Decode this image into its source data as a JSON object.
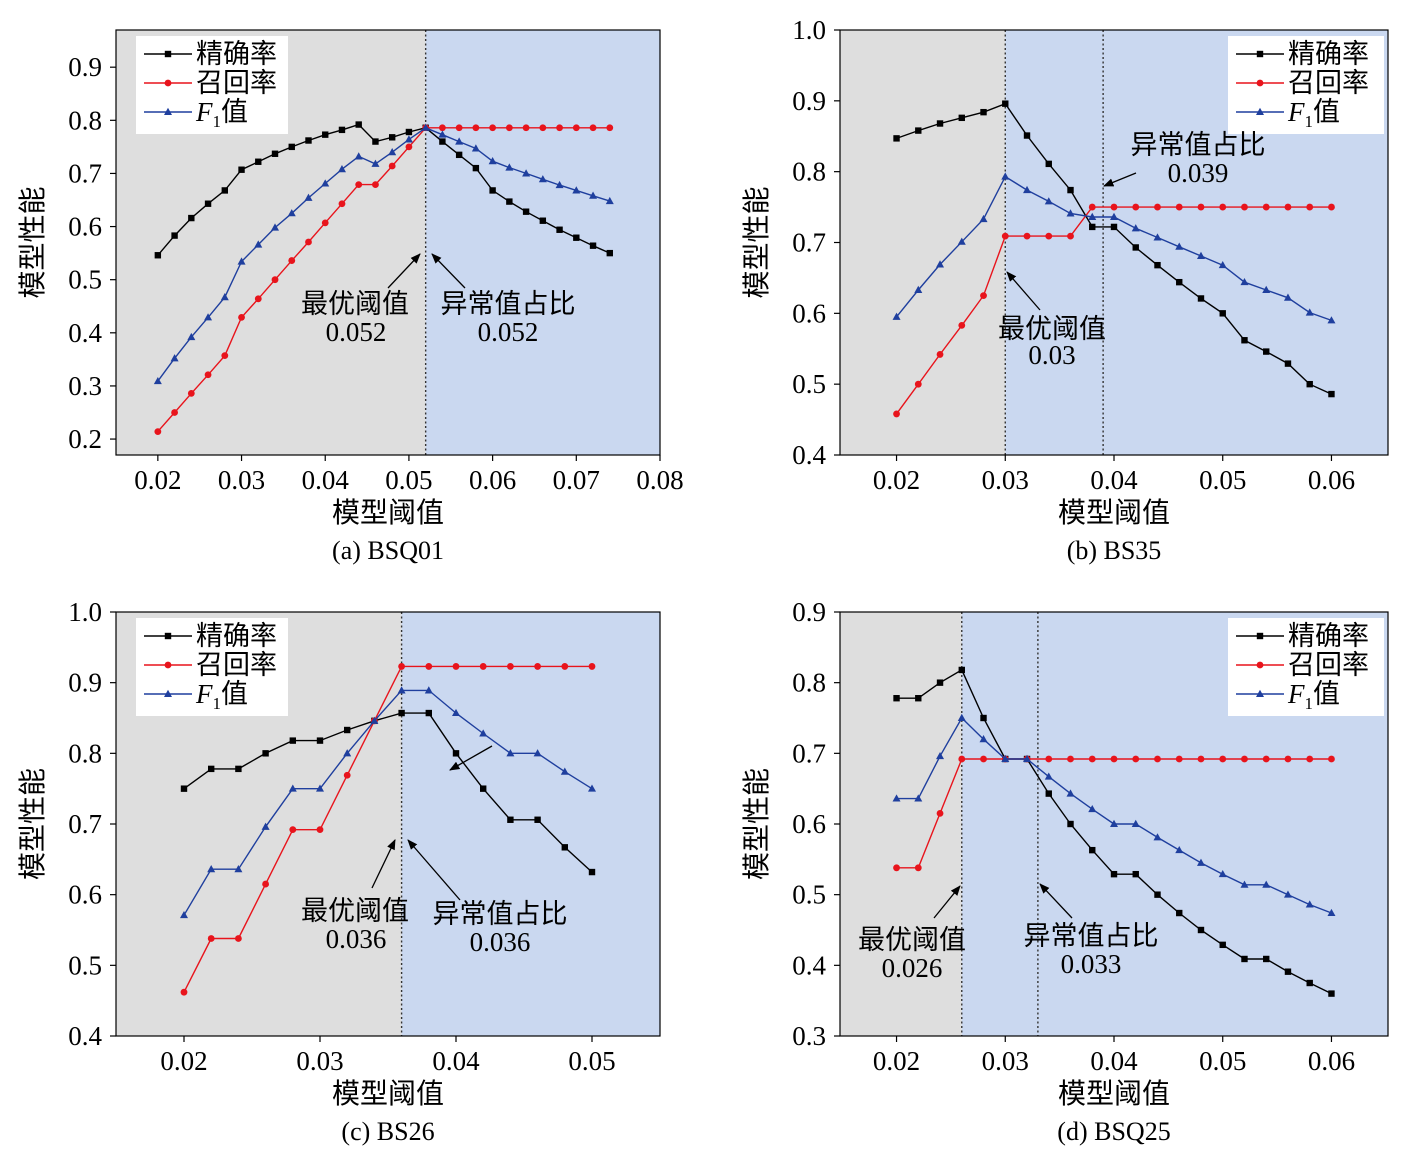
{
  "labels": {
    "xlabel": "模型阈值",
    "ylabel": "模型性能",
    "opt_text": "最优阈值",
    "ratio_text": "异常值占比"
  },
  "colors": {
    "precision": "#000000",
    "recall": "#e8141c",
    "f1": "#1f3f9e",
    "gray_region": "#dedede",
    "blue_region": "#cad8f0"
  },
  "legend_names": {
    "precision": "精确率",
    "recall": "召回率",
    "f1_italic": "F",
    "f1_sub": "1",
    "f1_tail": "值"
  },
  "chart_data": [
    {
      "type": "line",
      "caption": "(a) BSQ01",
      "xlabel": "模型阈值",
      "ylabel": "模型性能",
      "xlim": [
        0.015,
        0.08
      ],
      "ylim": [
        0.17,
        0.97
      ],
      "xticks": [
        0.02,
        0.03,
        0.04,
        0.05,
        0.06,
        0.07,
        0.08
      ],
      "xtick_labels": [
        "0.02",
        "0.03",
        "0.04",
        "0.05",
        "0.06",
        "0.07",
        "0.08"
      ],
      "yticks": [
        0.2,
        0.3,
        0.4,
        0.5,
        0.6,
        0.7,
        0.8,
        0.9
      ],
      "ytick_labels": [
        "0.2",
        "0.3",
        "0.4",
        "0.5",
        "0.6",
        "0.7",
        "0.8",
        "0.9"
      ],
      "legend_position": "top-left",
      "regions": [
        {
          "from": 0.015,
          "to": 0.052,
          "color": "gray"
        },
        {
          "from": 0.052,
          "to": 0.08,
          "color": "blue"
        }
      ],
      "vlines": [
        0.052
      ],
      "annotations": [
        {
          "label": "最优阈值",
          "value": "0.052",
          "x": 0.052,
          "y": 0.55,
          "arrow_to": [
            0.052,
            0.555
          ]
        },
        {
          "label": "异常值占比",
          "value": "0.052",
          "x": 0.052,
          "y": 0.55,
          "arrow_to": [
            0.052,
            0.555
          ]
        }
      ],
      "series": [
        {
          "name": "精确率",
          "x": [
            0.02,
            0.022,
            0.024,
            0.026,
            0.028,
            0.03,
            0.032,
            0.034,
            0.036,
            0.038,
            0.04,
            0.042,
            0.044,
            0.046,
            0.048,
            0.05,
            0.052,
            0.054,
            0.056,
            0.058,
            0.06,
            0.062,
            0.064,
            0.066,
            0.068,
            0.07,
            0.072,
            0.074
          ],
          "y": [
            0.546,
            0.583,
            0.616,
            0.643,
            0.668,
            0.707,
            0.722,
            0.737,
            0.75,
            0.762,
            0.773,
            0.782,
            0.792,
            0.76,
            0.768,
            0.778,
            0.786,
            0.76,
            0.735,
            0.71,
            0.668,
            0.647,
            0.628,
            0.611,
            0.594,
            0.579,
            0.564,
            0.55
          ]
        },
        {
          "name": "召回率",
          "x": [
            0.02,
            0.022,
            0.024,
            0.026,
            0.028,
            0.03,
            0.032,
            0.034,
            0.036,
            0.038,
            0.04,
            0.042,
            0.044,
            0.046,
            0.048,
            0.05,
            0.052,
            0.054,
            0.056,
            0.058,
            0.06,
            0.062,
            0.064,
            0.066,
            0.068,
            0.07,
            0.072,
            0.074
          ],
          "y": [
            0.214,
            0.25,
            0.286,
            0.321,
            0.357,
            0.429,
            0.464,
            0.5,
            0.536,
            0.571,
            0.607,
            0.643,
            0.679,
            0.679,
            0.714,
            0.75,
            0.786,
            0.786,
            0.786,
            0.786,
            0.786,
            0.786,
            0.786,
            0.786,
            0.786,
            0.786,
            0.786,
            0.786
          ]
        },
        {
          "name": "F1值",
          "x": [
            0.02,
            0.022,
            0.024,
            0.026,
            0.028,
            0.03,
            0.032,
            0.034,
            0.036,
            0.038,
            0.04,
            0.042,
            0.044,
            0.046,
            0.048,
            0.05,
            0.052,
            0.054,
            0.056,
            0.058,
            0.06,
            0.062,
            0.064,
            0.066,
            0.068,
            0.07,
            0.072,
            0.074
          ],
          "y": [
            0.309,
            0.352,
            0.392,
            0.429,
            0.467,
            0.534,
            0.566,
            0.598,
            0.625,
            0.654,
            0.681,
            0.708,
            0.732,
            0.718,
            0.74,
            0.764,
            0.786,
            0.773,
            0.76,
            0.747,
            0.723,
            0.711,
            0.7,
            0.689,
            0.678,
            0.668,
            0.658,
            0.648
          ]
        }
      ]
    },
    {
      "type": "line",
      "caption": "(b) BS35",
      "xlabel": "模型阈值",
      "ylabel": "模型性能",
      "xlim": [
        0.0148,
        0.0652
      ],
      "ylim": [
        0.4,
        1.0
      ],
      "xticks": [
        0.02,
        0.03,
        0.04,
        0.05,
        0.06
      ],
      "xtick_labels": [
        "0.02",
        "0.03",
        "0.04",
        "0.05",
        "0.06"
      ],
      "yticks": [
        0.4,
        0.5,
        0.6,
        0.7,
        0.8,
        0.9,
        1.0
      ],
      "ytick_labels": [
        "0.4",
        "0.5",
        "0.6",
        "0.7",
        "0.8",
        "0.9",
        "1.0"
      ],
      "legend_position": "top-right",
      "regions": [
        {
          "from": 0.0148,
          "to": 0.03,
          "color": "gray"
        },
        {
          "from": 0.03,
          "to": 0.0652,
          "color": "blue"
        }
      ],
      "vlines": [
        0.03,
        0.039
      ],
      "annotations": [
        {
          "label": "最优阈值",
          "value": "0.03",
          "x": 0.03,
          "y": 0.64,
          "arrow_to": [
            0.03,
            0.7
          ]
        },
        {
          "label": "异常值占比",
          "value": "0.039",
          "x": 0.039,
          "y": 0.79,
          "arrow_to": [
            0.0385,
            0.752
          ]
        }
      ],
      "series": [
        {
          "name": "精确率",
          "x": [
            0.02,
            0.022,
            0.024,
            0.026,
            0.028,
            0.03,
            0.032,
            0.034,
            0.036,
            0.038,
            0.04,
            0.042,
            0.044,
            0.046,
            0.048,
            0.05,
            0.052,
            0.054,
            0.056,
            0.058,
            0.06
          ],
          "y": [
            0.847,
            0.858,
            0.868,
            0.876,
            0.884,
            0.896,
            0.851,
            0.811,
            0.774,
            0.722,
            0.722,
            0.693,
            0.668,
            0.644,
            0.621,
            0.6,
            0.562,
            0.546,
            0.529,
            0.5,
            0.486
          ]
        },
        {
          "name": "召回率",
          "x": [
            0.02,
            0.022,
            0.024,
            0.026,
            0.028,
            0.03,
            0.032,
            0.034,
            0.036,
            0.038,
            0.04,
            0.042,
            0.044,
            0.046,
            0.048,
            0.05,
            0.052,
            0.054,
            0.056,
            0.058,
            0.06
          ],
          "y": [
            0.458,
            0.5,
            0.542,
            0.583,
            0.625,
            0.709,
            0.709,
            0.709,
            0.709,
            0.75,
            0.75,
            0.75,
            0.75,
            0.75,
            0.75,
            0.75,
            0.75,
            0.75,
            0.75,
            0.75,
            0.75
          ]
        },
        {
          "name": "F1值",
          "x": [
            0.02,
            0.022,
            0.024,
            0.026,
            0.028,
            0.03,
            0.032,
            0.034,
            0.036,
            0.038,
            0.04,
            0.042,
            0.044,
            0.046,
            0.048,
            0.05,
            0.052,
            0.054,
            0.056,
            0.058,
            0.06
          ],
          "y": [
            0.595,
            0.633,
            0.669,
            0.701,
            0.733,
            0.793,
            0.774,
            0.758,
            0.741,
            0.736,
            0.736,
            0.72,
            0.707,
            0.694,
            0.681,
            0.668,
            0.644,
            0.633,
            0.622,
            0.601,
            0.59
          ]
        }
      ]
    },
    {
      "type": "line",
      "caption": "(c) BS26",
      "xlabel": "模型阈值",
      "ylabel": "模型性能",
      "xlim": [
        0.015,
        0.055
      ],
      "ylim": [
        0.4,
        1.0
      ],
      "xticks": [
        0.02,
        0.03,
        0.04,
        0.05
      ],
      "xtick_labels": [
        "0.02",
        "0.03",
        "0.04",
        "0.05"
      ],
      "yticks": [
        0.4,
        0.5,
        0.6,
        0.7,
        0.8,
        0.9,
        1.0
      ],
      "ytick_labels": [
        "0.4",
        "0.5",
        "0.6",
        "0.7",
        "0.8",
        "0.9",
        "1.0"
      ],
      "legend_position": "top-left",
      "regions": [
        {
          "from": 0.015,
          "to": 0.036,
          "color": "gray"
        },
        {
          "from": 0.036,
          "to": 0.055,
          "color": "blue"
        }
      ],
      "vlines": [
        0.036
      ],
      "annotations": [
        {
          "label": "最优阈值",
          "value": "0.036",
          "x": 0.036,
          "y": 0.62,
          "arrow_to": [
            0.036,
            0.68
          ]
        },
        {
          "label": "异常值占比",
          "value": "0.036",
          "x": 0.036,
          "y": 0.62,
          "arrow_to": [
            0.036,
            0.68
          ]
        }
      ],
      "series": [
        {
          "name": "精确率",
          "x": [
            0.02,
            0.022,
            0.024,
            0.026,
            0.028,
            0.03,
            0.032,
            0.034,
            0.036,
            0.038,
            0.04,
            0.042,
            0.044,
            0.046,
            0.048,
            0.05
          ],
          "y": [
            0.75,
            0.778,
            0.778,
            0.8,
            0.818,
            0.818,
            0.833,
            0.846,
            0.857,
            0.857,
            0.8,
            0.75,
            0.706,
            0.706,
            0.667,
            0.632
          ]
        },
        {
          "name": "召回率",
          "x": [
            0.02,
            0.022,
            0.024,
            0.026,
            0.028,
            0.03,
            0.032,
            0.034,
            0.036,
            0.038,
            0.04,
            0.042,
            0.044,
            0.046,
            0.048,
            0.05
          ],
          "y": [
            0.462,
            0.538,
            0.538,
            0.615,
            0.692,
            0.692,
            0.769,
            0.846,
            0.923,
            0.923,
            0.923,
            0.923,
            0.923,
            0.923,
            0.923,
            0.923
          ]
        },
        {
          "name": "F1值",
          "x": [
            0.02,
            0.022,
            0.024,
            0.026,
            0.028,
            0.03,
            0.032,
            0.034,
            0.036,
            0.038,
            0.04,
            0.042,
            0.044,
            0.046,
            0.048,
            0.05
          ],
          "y": [
            0.571,
            0.636,
            0.636,
            0.696,
            0.75,
            0.75,
            0.8,
            0.846,
            0.889,
            0.889,
            0.857,
            0.828,
            0.8,
            0.8,
            0.774,
            0.75
          ]
        }
      ]
    },
    {
      "type": "line",
      "caption": "(d) BSQ25",
      "xlabel": "模型阈值",
      "ylabel": "模型性能",
      "xlim": [
        0.0148,
        0.0652
      ],
      "ylim": [
        0.3,
        0.9
      ],
      "xticks": [
        0.02,
        0.03,
        0.04,
        0.05,
        0.06
      ],
      "xtick_labels": [
        "0.02",
        "0.03",
        "0.04",
        "0.05",
        "0.06"
      ],
      "yticks": [
        0.3,
        0.4,
        0.5,
        0.6,
        0.7,
        0.8,
        0.9
      ],
      "ytick_labels": [
        "0.3",
        "0.4",
        "0.5",
        "0.6",
        "0.7",
        "0.8",
        "0.9"
      ],
      "legend_position": "top-right",
      "regions": [
        {
          "from": 0.0148,
          "to": 0.026,
          "color": "gray"
        },
        {
          "from": 0.026,
          "to": 0.0652,
          "color": "blue"
        }
      ],
      "vlines": [
        0.026,
        0.033
      ],
      "annotations": [
        {
          "label": "最优阈值",
          "value": "0.026",
          "x": 0.026,
          "y": 0.45,
          "arrow_to": [
            0.026,
            0.51
          ]
        },
        {
          "label": "异常值占比",
          "value": "0.033",
          "x": 0.033,
          "y": 0.45,
          "arrow_to": [
            0.033,
            0.51
          ]
        }
      ],
      "series": [
        {
          "name": "精确率",
          "x": [
            0.02,
            0.022,
            0.024,
            0.026,
            0.028,
            0.03,
            0.032,
            0.034,
            0.036,
            0.038,
            0.04,
            0.042,
            0.044,
            0.046,
            0.048,
            0.05,
            0.052,
            0.054,
            0.056,
            0.058,
            0.06
          ],
          "y": [
            0.778,
            0.778,
            0.8,
            0.818,
            0.75,
            0.692,
            0.692,
            0.643,
            0.6,
            0.563,
            0.529,
            0.529,
            0.5,
            0.474,
            0.45,
            0.429,
            0.409,
            0.409,
            0.391,
            0.375,
            0.36
          ]
        },
        {
          "name": "召回率",
          "x": [
            0.02,
            0.022,
            0.024,
            0.026,
            0.028,
            0.03,
            0.032,
            0.034,
            0.036,
            0.038,
            0.04,
            0.042,
            0.044,
            0.046,
            0.048,
            0.05,
            0.052,
            0.054,
            0.056,
            0.058,
            0.06
          ],
          "y": [
            0.538,
            0.538,
            0.615,
            0.692,
            0.692,
            0.692,
            0.692,
            0.692,
            0.692,
            0.692,
            0.692,
            0.692,
            0.692,
            0.692,
            0.692,
            0.692,
            0.692,
            0.692,
            0.692,
            0.692,
            0.692
          ]
        },
        {
          "name": "F1值",
          "x": [
            0.02,
            0.022,
            0.024,
            0.026,
            0.028,
            0.03,
            0.032,
            0.034,
            0.036,
            0.038,
            0.04,
            0.042,
            0.044,
            0.046,
            0.048,
            0.05,
            0.052,
            0.054,
            0.056,
            0.058,
            0.06
          ],
          "y": [
            0.636,
            0.636,
            0.696,
            0.75,
            0.72,
            0.692,
            0.692,
            0.667,
            0.643,
            0.621,
            0.6,
            0.6,
            0.581,
            0.563,
            0.545,
            0.529,
            0.514,
            0.514,
            0.5,
            0.486,
            0.474
          ]
        }
      ]
    }
  ]
}
